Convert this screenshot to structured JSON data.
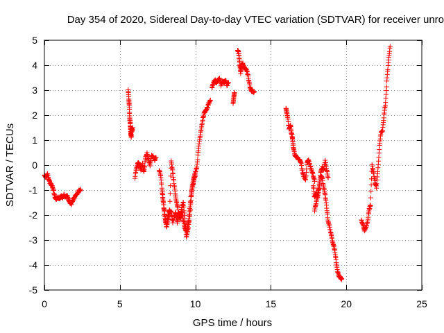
{
  "chart_data": {
    "type": "scatter",
    "title": "Day 354 of 2020, Sidereal Day-to-day VTEC variation (SDTVAR) for receiver unro",
    "xlabel": "GPS time / hours",
    "ylabel": "SDTVAR / TECUs",
    "xlim": [
      0,
      25
    ],
    "ylim": [
      -5,
      5
    ],
    "xticks": [
      0,
      5,
      10,
      15,
      20,
      25
    ],
    "yticks": [
      -5,
      -4,
      -3,
      -2,
      -1,
      0,
      1,
      2,
      3,
      4,
      5
    ],
    "grid": true,
    "marker": "+",
    "series": [
      {
        "name": "SDTVAR",
        "color": "#ff0000",
        "segments": [
          {
            "x": [
              0.0,
              0.1,
              0.2,
              0.3,
              0.4,
              0.5,
              0.6,
              0.7,
              0.8,
              0.9,
              1.0,
              1.1,
              1.2,
              1.3,
              1.4,
              1.5,
              1.6,
              1.7,
              1.8,
              1.9,
              2.0,
              2.1,
              2.2,
              2.3,
              2.4
            ],
            "y": [
              -0.4,
              -0.5,
              -0.35,
              -0.6,
              -0.75,
              -0.8,
              -1.0,
              -1.3,
              -1.35,
              -1.3,
              -1.35,
              -1.25,
              -1.3,
              -1.2,
              -1.3,
              -1.2,
              -1.4,
              -1.5,
              -1.55,
              -1.4,
              -1.3,
              -1.2,
              -1.1,
              -1.0,
              -1.0
            ]
          },
          {
            "x": [
              5.55,
              5.6,
              5.62,
              5.65,
              5.68,
              5.7,
              5.72,
              5.75,
              5.78,
              5.8,
              5.85
            ],
            "y": [
              3.05,
              2.6,
              2.4,
              1.9,
              1.7,
              1.5,
              1.3,
              1.1,
              1.45,
              1.35,
              1.5
            ]
          },
          {
            "x": [
              6.0,
              6.1,
              6.2,
              6.3,
              6.4,
              6.5,
              6.6,
              6.7,
              6.8,
              6.9,
              7.0,
              7.1,
              7.2,
              7.3,
              7.4
            ],
            "y": [
              -0.5,
              -0.1,
              0.1,
              0.0,
              -0.2,
              0.05,
              -0.3,
              0.3,
              0.5,
              0.2,
              0.0,
              0.4,
              0.35,
              0.2,
              0.3
            ]
          },
          {
            "x": [
              7.6,
              7.7,
              7.8,
              7.9,
              8.0,
              8.1,
              8.2,
              8.3,
              8.4,
              8.5,
              8.6,
              8.7,
              8.8,
              8.9,
              9.0,
              9.1,
              9.2,
              9.3,
              9.4,
              9.5,
              9.6,
              9.7,
              9.8,
              9.9,
              10.0,
              10.1,
              10.2,
              10.3,
              10.4,
              10.5,
              10.6,
              10.7,
              10.8,
              10.9,
              11.0
            ],
            "y": [
              -0.2,
              -0.4,
              -1.0,
              -1.6,
              -2.2,
              -2.5,
              -2.0,
              -1.8,
              0.2,
              -0.3,
              -0.8,
              -1.3,
              -1.6,
              -2.0,
              -2.2,
              -1.7,
              -1.5,
              -2.1,
              -2.9,
              -2.6,
              -2.2,
              -1.5,
              -0.8,
              -0.5,
              -0.3,
              -0.1,
              0.6,
              1.1,
              1.5,
              1.9,
              2.1,
              2.2,
              2.3,
              2.5,
              2.6
            ]
          },
          {
            "x": [
              7.8,
              7.9,
              8.0,
              8.1,
              8.2,
              8.3,
              8.4,
              8.5,
              8.6,
              8.7,
              8.8,
              8.9,
              9.0,
              9.1,
              9.2,
              9.3,
              9.4,
              9.5,
              9.6,
              9.7,
              9.8,
              9.9,
              10.0
            ],
            "y": [
              -1.1,
              -1.6,
              -2.1,
              -2.4,
              -2.2,
              -1.9,
              -1.85,
              -2.3,
              -2.05,
              -1.9,
              -2.3,
              -1.95,
              -2.0,
              -1.8,
              -2.2,
              -2.5,
              -2.7,
              -2.4,
              -2.0,
              -1.3,
              -0.9,
              -0.6,
              -0.4
            ]
          },
          {
            "x": [
              11.1,
              11.2,
              11.3,
              11.4,
              11.5,
              11.6,
              11.7,
              11.8,
              11.9,
              12.0,
              12.1,
              12.2
            ],
            "y": [
              3.1,
              3.3,
              3.4,
              3.3,
              3.4,
              3.45,
              3.2,
              3.35,
              3.3,
              3.4,
              3.2,
              3.3
            ]
          },
          {
            "x": [
              12.5,
              12.55,
              12.6
            ],
            "y": [
              2.5,
              2.7,
              2.9
            ]
          },
          {
            "x": [
              12.8,
              12.85,
              12.9,
              12.95,
              13.0,
              13.05,
              13.1,
              13.15,
              13.2,
              13.3,
              13.4,
              13.5,
              13.6,
              13.7,
              13.8,
              13.9
            ],
            "y": [
              4.6,
              4.55,
              4.3,
              4.0,
              3.7,
              3.9,
              4.0,
              4.05,
              3.95,
              3.85,
              3.8,
              3.55,
              3.2,
              3.0,
              2.95,
              2.95
            ]
          },
          {
            "x": [
              16.0,
              16.05,
              16.1,
              16.2,
              16.3,
              16.35,
              16.4,
              16.45,
              16.5,
              16.6,
              16.7,
              16.8,
              16.9,
              17.0,
              17.1,
              17.2,
              17.3,
              17.4,
              17.5,
              17.6,
              17.7,
              17.8,
              17.9
            ],
            "y": [
              2.3,
              2.1,
              2.0,
              1.45,
              1.6,
              1.3,
              1.2,
              1.0,
              0.65,
              0.4,
              0.35,
              0.25,
              0.2,
              0.1,
              -0.3,
              -0.5,
              -0.6,
              0.1,
              0.2,
              0.0,
              -0.2,
              -0.4,
              -0.65
            ]
          },
          {
            "x": [
              17.9,
              18.0,
              18.1,
              18.2,
              18.3,
              18.4,
              18.5,
              18.6,
              18.7,
              18.8,
              18.9,
              19.0,
              19.1,
              19.2,
              19.3,
              19.4,
              19.5,
              19.6,
              19.7
            ],
            "y": [
              -1.8,
              -1.5,
              -1.2,
              -0.8,
              -0.4,
              -0.5,
              -0.9,
              -1.2,
              -1.7,
              -2.3,
              -2.5,
              -2.8,
              -3.1,
              -3.3,
              -3.7,
              -4.2,
              -4.4,
              -4.5,
              -4.55
            ]
          },
          {
            "x": [
              17.8,
              17.9,
              18.0,
              18.1,
              18.2,
              18.3,
              18.4,
              18.5,
              18.6,
              18.7,
              18.8
            ],
            "y": [
              -0.8,
              -1.3,
              -1.1,
              -1.3,
              -0.9,
              -0.3,
              -0.1,
              -0.2,
              0.2,
              -0.2,
              -0.5
            ]
          },
          {
            "x": [
              21.0,
              21.1,
              21.2,
              21.3,
              21.4,
              21.5,
              21.6,
              21.7,
              21.8,
              21.9,
              22.0,
              22.1,
              22.2,
              22.3,
              22.4,
              22.5,
              22.6,
              22.7,
              22.8,
              22.9
            ],
            "y": [
              -2.2,
              -2.4,
              -2.6,
              -2.5,
              -2.3,
              -1.8,
              -1.6,
              0.0,
              -0.3,
              -0.7,
              -0.9,
              -0.1,
              0.8,
              1.3,
              1.4,
              2.0,
              2.5,
              3.5,
              4.2,
              4.75
            ]
          }
        ]
      }
    ]
  }
}
